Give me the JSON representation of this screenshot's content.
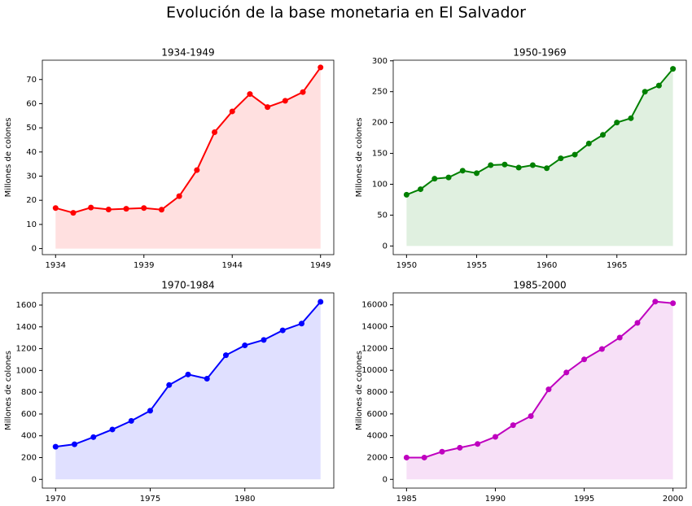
{
  "title": "Evolución de la base monetaria en El Salvador",
  "chart_data": [
    {
      "type": "line",
      "title": "1934-1949",
      "ylabel": "Millones de colones",
      "color": "#ff0000",
      "fill": true,
      "x": [
        1934,
        1935,
        1936,
        1937,
        1938,
        1939,
        1940,
        1941,
        1942,
        1943,
        1944,
        1945,
        1946,
        1947,
        1948,
        1949
      ],
      "values": [
        16.8,
        14.8,
        17.0,
        16.2,
        16.5,
        16.8,
        16.1,
        21.7,
        32.5,
        48.2,
        56.8,
        64.0,
        58.6,
        61.2,
        64.8,
        75.0
      ],
      "xlim": [
        1933.25,
        1949.75
      ],
      "xticks": [
        1934,
        1939,
        1944,
        1949
      ],
      "ylim": [
        -2.5,
        78
      ],
      "yticks": [
        0,
        10,
        20,
        30,
        40,
        50,
        60,
        70
      ]
    },
    {
      "type": "line",
      "title": "1950-1969",
      "ylabel": "Millones de colones",
      "color": "#008000",
      "fill": true,
      "x": [
        1950,
        1951,
        1952,
        1953,
        1954,
        1955,
        1956,
        1957,
        1958,
        1959,
        1960,
        1961,
        1962,
        1963,
        1964,
        1965,
        1966,
        1967,
        1968,
        1969
      ],
      "values": [
        83,
        92,
        109,
        111,
        122,
        118,
        131,
        132,
        127,
        131,
        126,
        142,
        148,
        166,
        180,
        200,
        207,
        250,
        260,
        287
      ],
      "xlim": [
        1949.05,
        1969.95
      ],
      "xticks": [
        1950,
        1955,
        1960,
        1965
      ],
      "ylim": [
        -14,
        301
      ],
      "yticks": [
        0,
        50,
        100,
        150,
        200,
        250,
        300
      ]
    },
    {
      "type": "line",
      "title": "1970-1984",
      "ylabel": "Millones de colones",
      "color": "#0000ff",
      "fill": true,
      "x": [
        1970,
        1971,
        1972,
        1973,
        1974,
        1975,
        1976,
        1977,
        1978,
        1979,
        1980,
        1981,
        1982,
        1983,
        1984
      ],
      "values": [
        300,
        322,
        388,
        458,
        537,
        630,
        866,
        963,
        924,
        1140,
        1230,
        1280,
        1368,
        1430,
        1630
      ],
      "xlim": [
        1969.3,
        1984.7
      ],
      "xticks": [
        1970,
        1975,
        1980
      ],
      "ylim": [
        -80,
        1712
      ],
      "yticks": [
        0,
        200,
        400,
        600,
        800,
        1000,
        1200,
        1400,
        1600
      ]
    },
    {
      "type": "line",
      "title": "1985-2000",
      "ylabel": "Millones de colones",
      "color": "#bf00bf",
      "fill": true,
      "x": [
        1985,
        1986,
        1987,
        1988,
        1989,
        1990,
        1991,
        1992,
        1993,
        1994,
        1995,
        1996,
        1997,
        1998,
        1999,
        2000
      ],
      "values": [
        2000,
        2000,
        2540,
        2900,
        3250,
        3900,
        4970,
        5800,
        8250,
        9800,
        11000,
        11950,
        13000,
        14350,
        16300,
        16150
      ],
      "xlim": [
        1984.25,
        2000.75
      ],
      "xticks": [
        1985,
        1990,
        1995,
        2000
      ],
      "ylim": [
        -800,
        17100
      ],
      "yticks": [
        0,
        2000,
        4000,
        6000,
        8000,
        10000,
        12000,
        14000,
        16000
      ]
    }
  ]
}
